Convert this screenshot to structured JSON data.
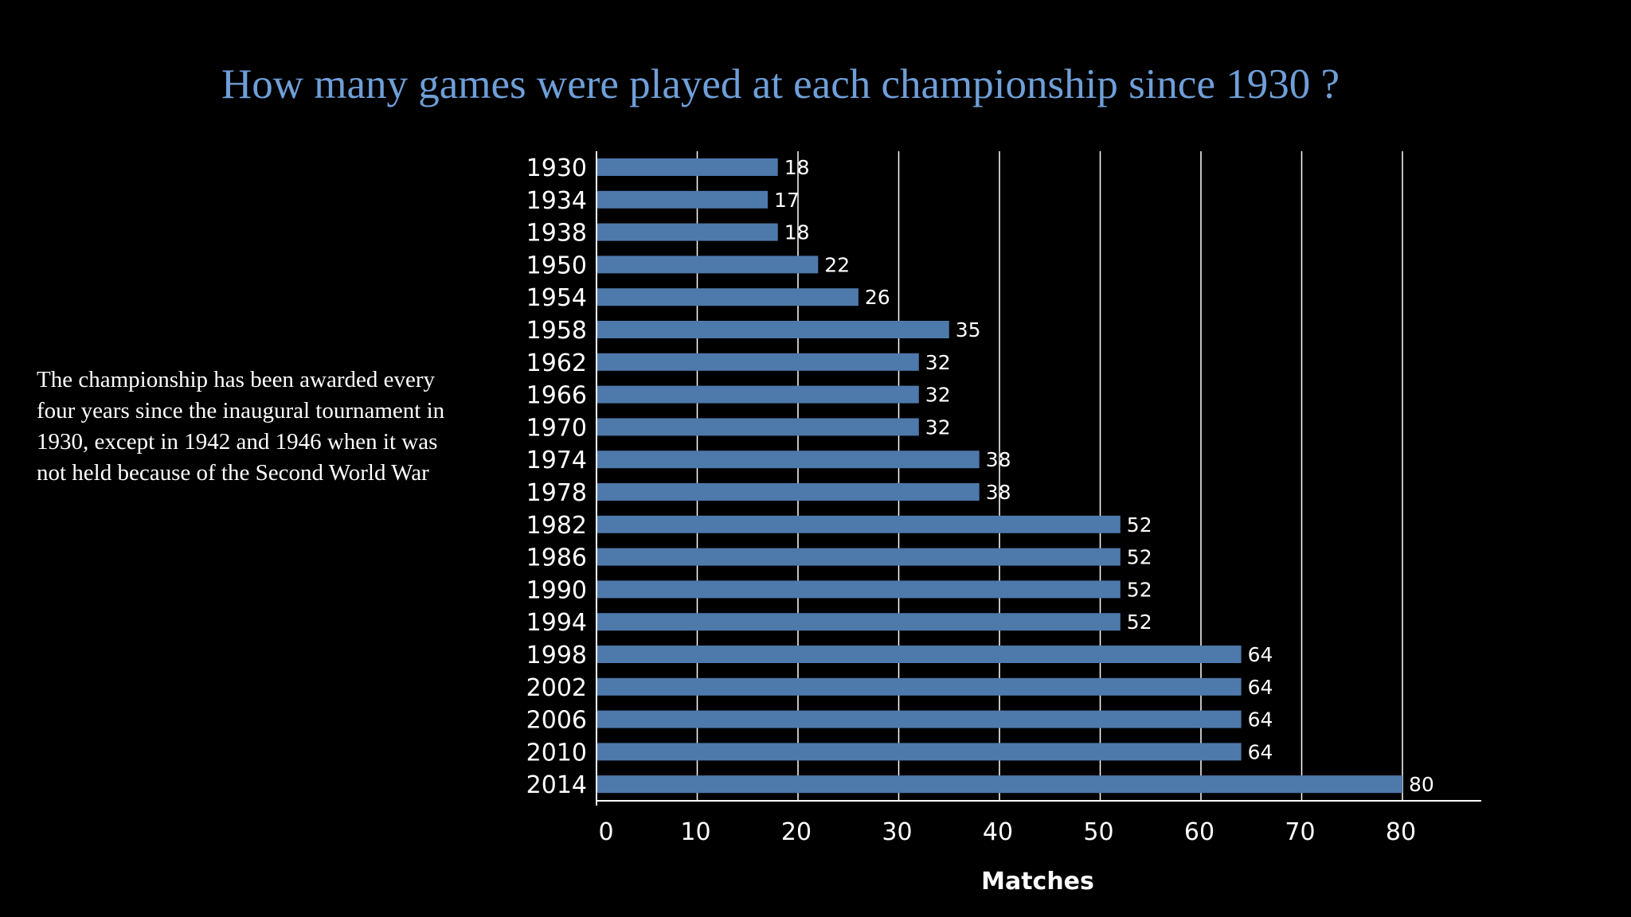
{
  "title": "How many games were played at each championship since 1930 ?",
  "note": "The championship has been awarded every four years since the inaugural tournament in 1930, except in 1942 and 1946 when it was not held because of the Second World War",
  "colors": {
    "background": "#000000",
    "bar": "#4e79ab",
    "title": "#6f9fd8",
    "text": "#ffffff",
    "grid": "#ffffff"
  },
  "chart_data": {
    "type": "bar",
    "orientation": "horizontal",
    "title": "How many games were played at each championship since 1930 ?",
    "xlabel": "Matches",
    "ylabel": "",
    "categories": [
      "1930",
      "1934",
      "1938",
      "1950",
      "1954",
      "1958",
      "1962",
      "1966",
      "1970",
      "1974",
      "1978",
      "1982",
      "1986",
      "1990",
      "1994",
      "1998",
      "2002",
      "2006",
      "2010",
      "2014"
    ],
    "values": [
      18,
      17,
      18,
      22,
      26,
      35,
      32,
      32,
      32,
      38,
      38,
      52,
      52,
      52,
      52,
      64,
      64,
      64,
      64,
      80
    ],
    "xlim": [
      0,
      88
    ],
    "xticks": [
      0,
      10,
      20,
      30,
      40,
      50,
      60,
      70,
      80
    ],
    "grid": true,
    "data_labels": true,
    "legend": "none"
  }
}
